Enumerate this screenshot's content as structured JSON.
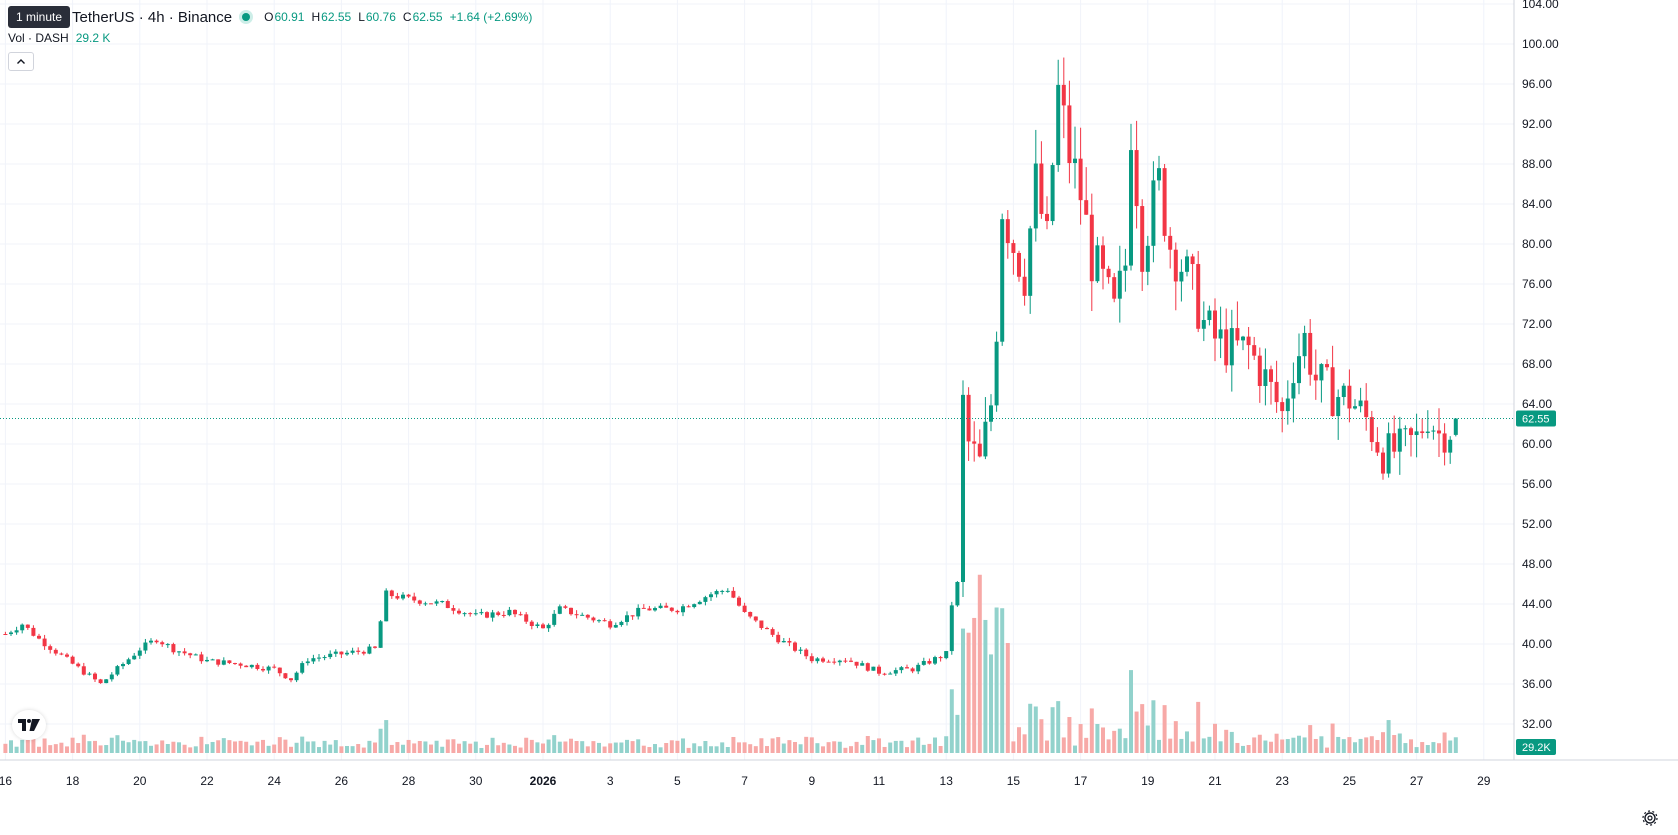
{
  "legend": {
    "tooltip": "1 minute",
    "symbol": "TetherUS · 4h · Binance",
    "o_label": "O",
    "o_value": "60.91",
    "h_label": "H",
    "h_value": "62.55",
    "l_label": "L",
    "l_value": "60.76",
    "c_label": "C",
    "c_value": "62.55",
    "change": "+1.64 (+2.69%)",
    "vol_label": "Vol · DASH",
    "vol_value": "29.2 K"
  },
  "icons": {
    "collapse": "chevron-up-icon",
    "logo": "tradingview-logo",
    "settings": "gear-icon"
  },
  "colors": {
    "up": "#089981",
    "down": "#f23645",
    "vol_up": "#92d2cc",
    "vol_down": "#f7a9a7",
    "price_line": "#089981"
  },
  "chart_data": {
    "type": "candlestick",
    "timeframe": "4h",
    "ylim": [
      30,
      104
    ],
    "y_ticks": [
      "104.00",
      "100.00",
      "96.00",
      "92.00",
      "88.00",
      "84.00",
      "80.00",
      "76.00",
      "72.00",
      "68.00",
      "64.00",
      "60.00",
      "56.00",
      "52.00",
      "48.00",
      "44.00",
      "40.00",
      "36.00",
      "32.00"
    ],
    "x_ticks": [
      {
        "label": "16",
        "day": -16
      },
      {
        "label": "18",
        "day": -14
      },
      {
        "label": "20",
        "day": -12
      },
      {
        "label": "22",
        "day": -10
      },
      {
        "label": "24",
        "day": -8
      },
      {
        "label": "26",
        "day": -6
      },
      {
        "label": "28",
        "day": -4
      },
      {
        "label": "30",
        "day": -2
      },
      {
        "label": "2026",
        "day": 0,
        "bold": true
      },
      {
        "label": "3",
        "day": 2
      },
      {
        "label": "5",
        "day": 4
      },
      {
        "label": "7",
        "day": 6
      },
      {
        "label": "9",
        "day": 8
      },
      {
        "label": "11",
        "day": 10
      },
      {
        "label": "13",
        "day": 12
      },
      {
        "label": "15",
        "day": 14
      },
      {
        "label": "17",
        "day": 16
      },
      {
        "label": "19",
        "day": 18
      },
      {
        "label": "21",
        "day": 20
      },
      {
        "label": "23",
        "day": 22
      },
      {
        "label": "25",
        "day": 24
      },
      {
        "label": "27",
        "day": 26
      },
      {
        "label": "29",
        "day": 28
      }
    ],
    "current_price": "62.55",
    "current_volume": "29.2K",
    "close_anchors": [
      [
        "2025-12-16",
        41.0
      ],
      [
        "2025-12-16T12:00",
        42.0
      ],
      [
        "2025-12-17",
        40.5
      ],
      [
        "2025-12-18",
        38.0
      ],
      [
        "2025-12-18T20:00",
        36.0
      ],
      [
        "2025-12-19T08:00",
        37.5
      ],
      [
        "2025-12-20",
        39.5
      ],
      [
        "2025-12-20T12:00",
        40.5
      ],
      [
        "2025-12-21",
        39.5
      ],
      [
        "2025-12-22",
        38.3
      ],
      [
        "2025-12-23",
        38.0
      ],
      [
        "2025-12-24",
        37.5
      ],
      [
        "2025-12-24T12:00",
        36.5
      ],
      [
        "2025-12-25",
        38.5
      ],
      [
        "2025-12-26",
        39.0
      ],
      [
        "2025-12-27",
        39.5
      ],
      [
        "2025-12-27T08:00",
        45.0
      ],
      [
        "2025-12-28",
        44.5
      ],
      [
        "2025-12-29",
        44.0
      ],
      [
        "2025-12-30",
        42.8
      ],
      [
        "2025-12-31",
        43.2
      ],
      [
        "2026-01-01",
        41.5
      ],
      [
        "2026-01-01T12:00",
        43.5
      ],
      [
        "2026-01-02",
        43.0
      ],
      [
        "2026-01-03",
        42.0
      ],
      [
        "2026-01-04",
        43.5
      ],
      [
        "2026-01-05",
        43.5
      ],
      [
        "2026-01-06",
        45.0
      ],
      [
        "2026-01-06T12:00",
        45.5
      ],
      [
        "2026-01-07",
        43.0
      ],
      [
        "2026-01-08",
        40.5
      ],
      [
        "2026-01-09",
        38.5
      ],
      [
        "2026-01-10",
        38.5
      ],
      [
        "2026-01-11",
        37.2
      ],
      [
        "2026-01-12",
        37.5
      ],
      [
        "2026-01-13",
        39.0
      ],
      [
        "2026-01-13T04:00",
        44.0
      ],
      [
        "2026-01-13T08:00",
        46.0
      ],
      [
        "2026-01-13T12:00",
        64.0
      ],
      [
        "2026-01-13T16:00",
        60.0
      ],
      [
        "2026-01-14",
        58.0
      ],
      [
        "2026-01-14T08:00",
        64.0
      ],
      [
        "2026-01-14T12:00",
        72.0
      ],
      [
        "2026-01-14T16:00",
        84.0
      ],
      [
        "2026-01-15",
        80.0
      ],
      [
        "2026-01-15T08:00",
        77.0
      ],
      [
        "2026-01-15T16:00",
        86.0
      ],
      [
        "2026-01-16",
        80.0
      ],
      [
        "2026-01-16T04:00",
        88.0
      ],
      [
        "2026-01-16T08:00",
        95.0
      ],
      [
        "2026-01-16T16:00",
        89.0
      ],
      [
        "2026-01-17",
        85.0
      ],
      [
        "2026-01-17T08:00",
        78.5
      ],
      [
        "2026-01-17T16:00",
        76.0
      ],
      [
        "2026-01-18",
        73.0
      ],
      [
        "2026-01-18T08:00",
        78.0
      ],
      [
        "2026-01-18T12:00",
        92.0
      ],
      [
        "2026-01-18T20:00",
        80.0
      ],
      [
        "2026-01-19",
        82.0
      ],
      [
        "2026-01-19T08:00",
        86.0
      ],
      [
        "2026-01-19T16:00",
        80.0
      ],
      [
        "2026-01-20",
        78.0
      ],
      [
        "2026-01-20T08:00",
        75.5
      ],
      [
        "2026-01-20T16:00",
        72.0
      ],
      [
        "2026-01-21",
        70.5
      ],
      [
        "2026-01-21T12:00",
        69.5
      ],
      [
        "2026-01-22",
        69.5
      ],
      [
        "2026-01-22T12:00",
        66.5
      ],
      [
        "2026-01-23",
        63.0
      ],
      [
        "2026-01-23T08:00",
        68.0
      ],
      [
        "2026-01-23T16:00",
        70.5
      ],
      [
        "2026-01-24",
        66.5
      ],
      [
        "2026-01-24T12:00",
        65.0
      ],
      [
        "2026-01-25",
        64.5
      ],
      [
        "2026-01-25T12:00",
        62.5
      ],
      [
        "2026-01-26",
        59.0
      ],
      [
        "2026-01-26T12:00",
        59.5
      ],
      [
        "2026-01-27",
        60.5
      ],
      [
        "2026-01-27T08:00",
        63.0
      ],
      [
        "2026-01-27T16:00",
        61.0
      ],
      [
        "2026-01-28",
        61.5
      ],
      [
        "2026-01-28T04:00",
        62.55
      ]
    ]
  }
}
